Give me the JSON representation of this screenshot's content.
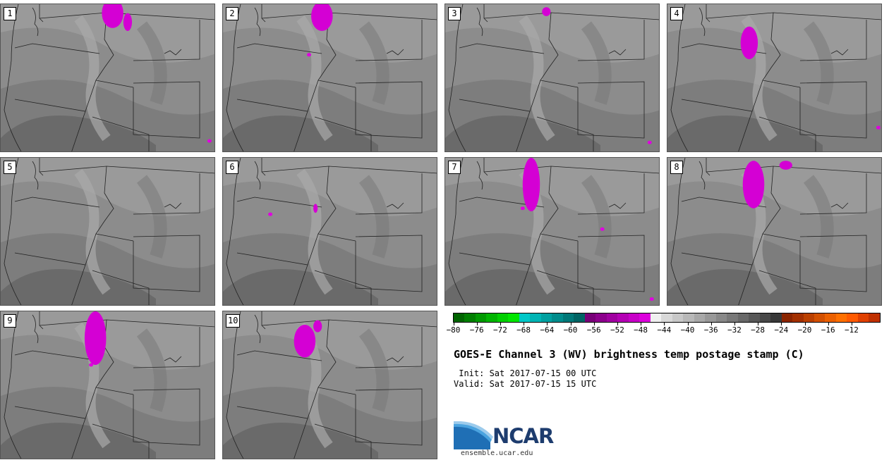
{
  "panels": [
    {
      "label": "1",
      "blobs": [
        [
          0.52,
          0.06,
          0.05,
          0.1
        ],
        [
          0.59,
          0.12,
          0.02,
          0.06
        ]
      ],
      "spots": [
        [
          0.97,
          0.92
        ]
      ]
    },
    {
      "label": "2",
      "blobs": [
        [
          0.46,
          0.08,
          0.05,
          0.1
        ]
      ],
      "spots": [
        [
          0.4,
          0.34
        ]
      ]
    },
    {
      "label": "3",
      "blobs": [
        [
          0.47,
          0.05,
          0.02,
          0.03
        ]
      ],
      "spots": [
        [
          0.95,
          0.93
        ]
      ]
    },
    {
      "label": "4",
      "blobs": [
        [
          0.38,
          0.26,
          0.04,
          0.11
        ]
      ],
      "spots": [
        [
          0.98,
          0.83
        ]
      ]
    },
    {
      "label": "5",
      "blobs": [],
      "spots": []
    },
    {
      "label": "6",
      "blobs": [
        [
          0.43,
          0.34,
          0.01,
          0.03
        ]
      ],
      "spots": [
        [
          0.22,
          0.38
        ]
      ]
    },
    {
      "label": "7",
      "blobs": [
        [
          0.4,
          0.18,
          0.04,
          0.18
        ]
      ],
      "spots": [
        [
          0.36,
          0.34
        ],
        [
          0.73,
          0.48
        ],
        [
          0.96,
          0.95
        ]
      ]
    },
    {
      "label": "8",
      "blobs": [
        [
          0.4,
          0.18,
          0.05,
          0.16
        ],
        [
          0.55,
          0.05,
          0.03,
          0.03
        ]
      ],
      "spots": []
    },
    {
      "label": "9",
      "blobs": [
        [
          0.44,
          0.18,
          0.05,
          0.18
        ]
      ],
      "spots": [
        [
          0.42,
          0.36
        ]
      ]
    },
    {
      "label": "10",
      "blobs": [
        [
          0.38,
          0.2,
          0.05,
          0.11
        ],
        [
          0.44,
          0.1,
          0.02,
          0.04
        ]
      ],
      "spots": []
    }
  ],
  "colorbar": {
    "colors": [
      "#006400",
      "#007e00",
      "#009900",
      "#00b400",
      "#00cf00",
      "#00e600",
      "#00c8c8",
      "#00b4b4",
      "#00a0a0",
      "#008c8c",
      "#007878",
      "#006464",
      "#780078",
      "#8c008c",
      "#a000a0",
      "#b400b4",
      "#c800c8",
      "#dc00dc",
      "#f0f0f0",
      "#d8d8d8",
      "#c8c8c8",
      "#b8b8b8",
      "#a8a8a8",
      "#989898",
      "#888888",
      "#787878",
      "#686868",
      "#585858",
      "#484848",
      "#383838",
      "#8b2500",
      "#a33000",
      "#bb4000",
      "#d35000",
      "#eb6000",
      "#ff7000",
      "#ff5a00",
      "#e04000",
      "#c03000"
    ],
    "ticks": [
      "−80",
      "−76",
      "−72",
      "−68",
      "−64",
      "−60",
      "−56",
      "−52",
      "−48",
      "−44",
      "−40",
      "−36",
      "−32",
      "−28",
      "−24",
      "−20",
      "−16",
      "−12"
    ]
  },
  "title": "GOES-E Channel 3 (WV) brightness temp postage stamp (C)",
  "init": " Init: Sat 2017-07-15 00 UTC",
  "valid": "Valid: Sat 2017-07-15 15 UTC",
  "logo_text": "NCAR",
  "url": "ensemble.ucar.edu"
}
